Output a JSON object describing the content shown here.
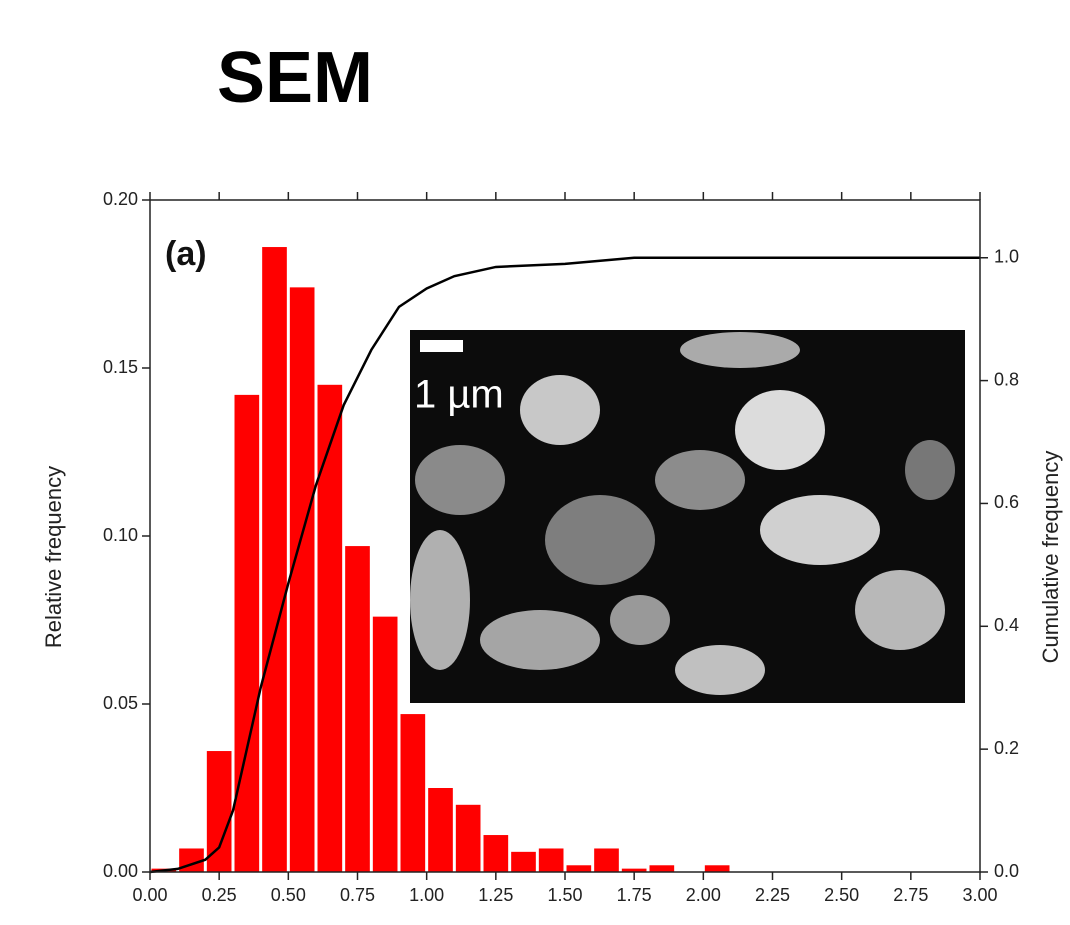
{
  "chart_data": {
    "type": "histogram",
    "title": "SEM",
    "panel_label": "(a)",
    "inset_label": "1 µm",
    "xlabel": "",
    "ylabel": "Relative frequency",
    "y2label": "Cumulative frequency",
    "bins": [
      0.0,
      0.1,
      0.2,
      0.3,
      0.4,
      0.5,
      0.6,
      0.7,
      0.8,
      0.9,
      1.0,
      1.1,
      1.2,
      1.3,
      1.4,
      1.5,
      1.6,
      1.7,
      1.8,
      1.9,
      2.0,
      2.1
    ],
    "values": [
      0.001,
      0.007,
      0.036,
      0.142,
      0.186,
      0.174,
      0.145,
      0.097,
      0.076,
      0.047,
      0.025,
      0.02,
      0.011,
      0.006,
      0.007,
      0.002,
      0.007,
      0.001,
      0.002,
      0,
      0.002
    ],
    "color": "#ff0000",
    "cumulative": {
      "color": "#000000",
      "axis": "y2",
      "x": [
        0,
        0.1,
        0.2,
        0.25,
        0.3,
        0.35,
        0.4,
        0.5,
        0.6,
        0.7,
        0.8,
        0.9,
        1.0,
        1.1,
        1.25,
        1.5,
        1.75,
        2.0,
        3.0
      ],
      "values": [
        0,
        0.005,
        0.02,
        0.04,
        0.1,
        0.2,
        0.3,
        0.47,
        0.63,
        0.76,
        0.85,
        0.92,
        0.95,
        0.97,
        0.985,
        0.99,
        1.0,
        1.0,
        1.0
      ]
    },
    "xlim": [
      0,
      3
    ],
    "ylim": [
      0,
      0.2
    ],
    "y2lim": [
      0,
      1.094
    ],
    "xticks": [
      {
        "value": 0,
        "label": "0.00"
      },
      {
        "value": 0.25,
        "label": "0.25"
      },
      {
        "value": 0.5,
        "label": "0.50"
      },
      {
        "value": 0.75,
        "label": "0.75"
      },
      {
        "value": 1,
        "label": "1.00"
      },
      {
        "value": 1.25,
        "label": "1.25"
      },
      {
        "value": 1.5,
        "label": "1.50"
      },
      {
        "value": 1.75,
        "label": "1.75"
      },
      {
        "value": 2,
        "label": "2.00"
      },
      {
        "value": 2.25,
        "label": "2.25"
      },
      {
        "value": 2.5,
        "label": "2.50"
      },
      {
        "value": 2.75,
        "label": "2.75"
      },
      {
        "value": 3,
        "label": "3.00"
      }
    ],
    "yticks": [
      {
        "value": 0,
        "label": "0.00"
      },
      0.05,
      {
        "value": 0.1,
        "label": "0.10"
      },
      0.15,
      {
        "value": 0.2,
        "label": "0.20"
      }
    ],
    "y2ticks": [
      {
        "value": 0,
        "label": "0.0"
      },
      0.2,
      0.4,
      0.6,
      0.8,
      {
        "value": 1,
        "label": "1.0"
      }
    ]
  }
}
